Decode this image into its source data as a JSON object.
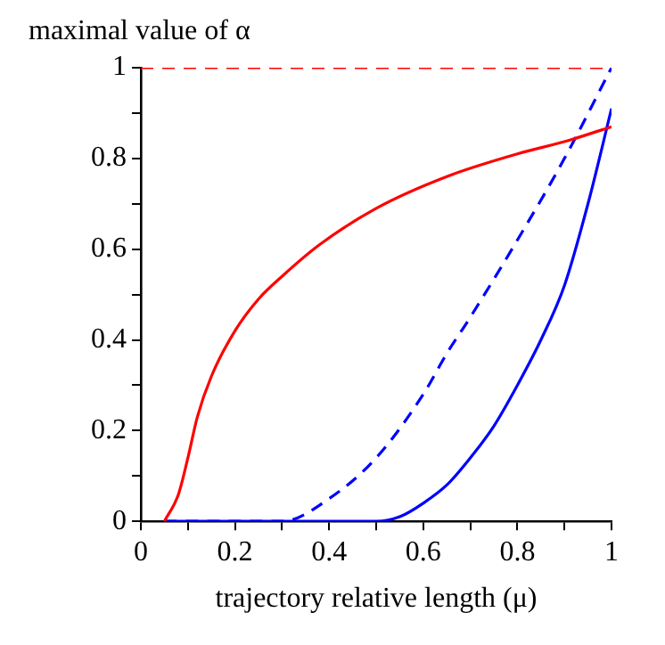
{
  "chart_data": {
    "type": "line",
    "ylabel": "maximal value of α",
    "xlabel": "trajectory relative length (μ)",
    "xlim": [
      0,
      1
    ],
    "ylim": [
      0,
      1
    ],
    "xticks": [
      0,
      {
        "value": 0.1,
        "label": null
      },
      0.2,
      {
        "value": 0.3,
        "label": null
      },
      0.4,
      {
        "value": 0.5,
        "label": null
      },
      0.6,
      {
        "value": 0.7,
        "label": null
      },
      0.8,
      {
        "value": 0.9,
        "label": null
      },
      1
    ],
    "yticks": [
      0,
      {
        "value": 0.1,
        "label": null
      },
      0.2,
      {
        "value": 0.3,
        "label": null
      },
      0.4,
      {
        "value": 0.5,
        "label": null
      },
      0.6,
      {
        "value": 0.7,
        "label": null
      },
      0.8,
      {
        "value": 0.9,
        "label": null
      },
      1
    ],
    "marker": "none",
    "legend": false,
    "grid": false,
    "series": [
      {
        "color": "#ff0000",
        "line_style": "dashed",
        "x": [
          0,
          1
        ],
        "values": [
          1,
          1
        ]
      },
      {
        "color": "#ff0000",
        "line_style": "solid",
        "x": [
          0.05,
          0.08,
          0.1,
          0.12,
          0.15,
          0.2,
          0.25,
          0.3,
          0.38,
          0.5,
          0.65,
          0.8,
          0.91,
          1
        ],
        "values": [
          0,
          0.06,
          0.14,
          0.23,
          0.32,
          0.42,
          0.49,
          0.54,
          0.61,
          0.69,
          0.76,
          0.81,
          0.84,
          0.87
        ]
      },
      {
        "color": "#0000ff",
        "line_style": "dashed",
        "x": [
          0.05,
          0.3,
          0.4,
          0.5,
          0.6,
          0.65,
          0.7,
          0.8,
          0.9,
          1
        ],
        "values": [
          0,
          0,
          0.05,
          0.14,
          0.28,
          0.37,
          0.45,
          0.62,
          0.8,
          1
        ]
      },
      {
        "color": "#0000ff",
        "line_style": "solid",
        "x": [
          0.05,
          0.5,
          0.55,
          0.6,
          0.65,
          0.7,
          0.75,
          0.8,
          0.85,
          0.9,
          0.95,
          1
        ],
        "values": [
          0,
          0,
          0.01,
          0.04,
          0.08,
          0.14,
          0.21,
          0.3,
          0.4,
          0.52,
          0.7,
          0.91
        ]
      }
    ]
  }
}
